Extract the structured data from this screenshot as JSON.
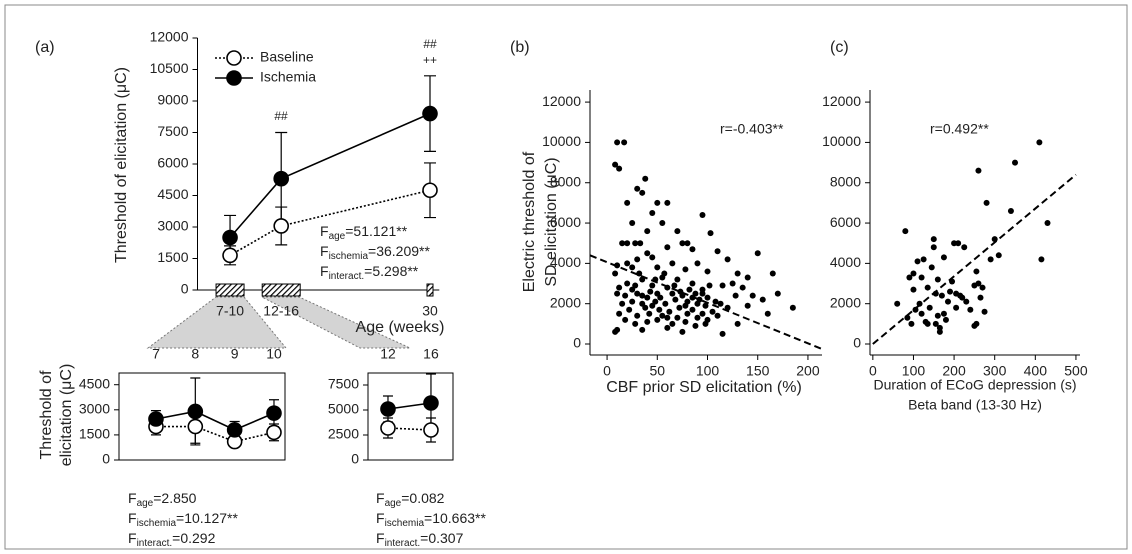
{
  "chart_data": [
    {
      "type": "line",
      "panel": "(a)",
      "ylabel": "Threshold of elicitation (μC)",
      "xlabel": "Age (weeks)",
      "x": [
        8.5,
        14,
        30
      ],
      "xlim": [
        5,
        31
      ],
      "xticks": [
        {
          "value": 8.5,
          "label": "7-10"
        },
        {
          "value": 14,
          "label": "12-16"
        },
        {
          "value": 30,
          "label": "30"
        }
      ],
      "ylim": [
        0,
        12000
      ],
      "yticks": [
        0,
        1500,
        3000,
        4500,
        6000,
        7500,
        9000,
        10500,
        12000
      ],
      "series": [
        {
          "name": "Baseline",
          "color": "#ffffff",
          "dash": "dotted",
          "values": [
            1650,
            3050,
            4750
          ],
          "errors": [
            450,
            900,
            1300
          ]
        },
        {
          "name": "Ischemia",
          "color": "#000000",
          "dash": "solid",
          "values": [
            2500,
            5300,
            8400
          ],
          "errors": [
            1050,
            2200,
            1800
          ]
        }
      ],
      "annotations": [
        "##",
        "##",
        "++"
      ],
      "stats_symbol": "F",
      "stats": [
        {
          "sub": "age",
          "text": "=51.121**"
        },
        {
          "sub": "ischemia",
          "text": "=36.209**"
        },
        {
          "sub": "interact.",
          "text": "=5.298**"
        }
      ]
    },
    {
      "type": "line",
      "ylabel_lines": [
        "Threshold of",
        "elicitation (μC)"
      ],
      "x": [
        7,
        8,
        9,
        10
      ],
      "xlim": [
        6.06,
        10.28
      ],
      "xticks": [
        7,
        8,
        9,
        10
      ],
      "ylim": [
        0,
        5200
      ],
      "yticks": [
        0,
        1500,
        3000,
        4500
      ],
      "series": [
        {
          "name": "Baseline",
          "color": "#ffffff",
          "dash": "dotted",
          "values": [
            2000,
            2000,
            1100,
            1650
          ],
          "errors": [
            500,
            1000,
            300,
            500
          ]
        },
        {
          "name": "Ischemia",
          "color": "#000000",
          "dash": "solid",
          "values": [
            2450,
            2900,
            1800,
            2800
          ],
          "errors": [
            500,
            2000,
            500,
            800
          ]
        }
      ],
      "stats_symbol": "F",
      "stats": [
        {
          "sub": "age",
          "text": "=2.850"
        },
        {
          "sub": "ischemia",
          "text": "=10.127**"
        },
        {
          "sub": "interact.",
          "text": "=0.292"
        }
      ]
    },
    {
      "type": "line",
      "x": [
        12,
        16
      ],
      "xlim": [
        10.14,
        18.05
      ],
      "xticks": [
        12,
        16
      ],
      "ylim": [
        0,
        8700
      ],
      "yticks": [
        0,
        2500,
        5000,
        7500
      ],
      "series": [
        {
          "name": "Baseline",
          "color": "#ffffff",
          "dash": "dotted",
          "values": [
            3200,
            3000
          ],
          "errors": [
            1000,
            1200
          ]
        },
        {
          "name": "Ischemia",
          "color": "#000000",
          "dash": "solid",
          "values": [
            5100,
            5700
          ],
          "errors": [
            1300,
            2900
          ]
        }
      ],
      "stats_symbol": "F",
      "stats": [
        {
          "sub": "age",
          "text": "=0.082"
        },
        {
          "sub": "ischemia",
          "text": "=10.663**"
        },
        {
          "sub": "interact.",
          "text": "=0.307"
        }
      ]
    },
    {
      "type": "scatter",
      "panel": "(b)",
      "ylabel_lines": [
        "Electric threshold of",
        "SD elicitation (μC)"
      ],
      "xlabel": "CBF prior SD elicitation (%)",
      "annotation": "r=-0.403**",
      "xlim": [
        -17,
        214
      ],
      "xticks": [
        0,
        50,
        100,
        150,
        200
      ],
      "ylim": [
        -545,
        12600
      ],
      "yticks": [
        0,
        2000,
        4000,
        6000,
        8000,
        10000,
        12000
      ],
      "color": "#000000",
      "x": [
        10,
        17,
        8,
        12,
        30,
        38,
        35,
        50,
        20,
        60,
        45,
        95,
        25,
        40,
        15,
        20,
        28,
        33,
        55,
        70,
        75,
        103,
        80,
        60,
        40,
        85,
        110,
        150,
        120,
        45,
        30,
        65,
        90,
        10,
        25,
        50,
        78,
        100,
        130,
        140,
        165,
        55,
        20,
        35,
        70,
        85,
        12,
        28,
        45,
        60,
        95,
        115,
        128,
        135,
        145,
        170,
        10,
        18,
        30,
        40,
        50,
        65,
        75,
        88,
        100,
        108,
        155,
        185,
        15,
        25,
        35,
        48,
        58,
        68,
        80,
        90,
        98,
        120,
        22,
        38,
        52,
        62,
        72,
        85,
        95,
        105,
        12,
        30,
        42,
        55,
        70,
        80,
        90,
        100,
        110,
        18,
        28,
        40,
        50,
        65,
        78,
        88,
        98,
        10,
        35,
        60,
        75,
        115,
        45,
        82,
        57,
        43,
        67,
        92,
        102,
        125,
        8,
        32,
        48,
        73,
        85,
        95,
        60,
        25,
        35,
        78,
        53,
        113,
        20,
        8,
        140,
        160,
        130
      ],
      "values": [
        10000,
        10000,
        8900,
        8700,
        7700,
        8200,
        7500,
        7000,
        7000,
        7000,
        6500,
        6400,
        6000,
        5600,
        5000,
        5000,
        5000,
        5000,
        6000,
        5600,
        5000,
        5500,
        5000,
        4800,
        4500,
        4700,
        4600,
        4500,
        4200,
        4300,
        4200,
        4000,
        4000,
        3900,
        3800,
        3800,
        3700,
        3600,
        3500,
        3300,
        3500,
        3300,
        3000,
        3200,
        3200,
        3000,
        2800,
        2900,
        2900,
        2800,
        2700,
        2900,
        2400,
        2800,
        2400,
        2500,
        2500,
        2400,
        2500,
        2300,
        2500,
        2500,
        2400,
        2500,
        2300,
        2100,
        2200,
        1800,
        2000,
        2100,
        2000,
        2100,
        2000,
        2200,
        2100,
        2000,
        1900,
        1800,
        1700,
        1800,
        1700,
        1600,
        1800,
        1700,
        1500,
        1600,
        1500,
        1400,
        1500,
        1400,
        1300,
        1500,
        1300,
        1200,
        1400,
        1200,
        1000,
        1100,
        1200,
        1000,
        1100,
        900,
        1000,
        700,
        700,
        800,
        600,
        500,
        1900,
        2700,
        3500,
        2600,
        2900,
        2200,
        2900,
        3000,
        3500,
        3500,
        3200,
        2600,
        2300,
        2500,
        1300,
        2700,
        2400,
        1900,
        2300,
        2000,
        4000,
        600,
        1900,
        1500,
        1000
      ],
      "trend": {
        "x": [
          -17,
          214
        ],
        "values": [
          4400,
          -250
        ]
      }
    },
    {
      "type": "scatter",
      "panel": "(c)",
      "xlabel_lines": [
        "Duration of ECoG depression (s)",
        "Beta band (13-30 Hz)"
      ],
      "annotation": "r=0.492**",
      "xlim": [
        -7,
        510
      ],
      "xticks": [
        0,
        100,
        200,
        300,
        400,
        500
      ],
      "ylim": [
        -545,
        12600
      ],
      "yticks": [
        0,
        2000,
        4000,
        6000,
        8000,
        10000,
        12000
      ],
      "color": "#000000",
      "x": [
        60,
        80,
        85,
        90,
        95,
        100,
        105,
        110,
        115,
        120,
        125,
        130,
        135,
        140,
        145,
        150,
        150,
        155,
        155,
        160,
        160,
        165,
        165,
        170,
        175,
        180,
        185,
        190,
        195,
        200,
        205,
        210,
        215,
        220,
        225,
        230,
        240,
        250,
        250,
        255,
        260,
        260,
        265,
        270,
        275,
        280,
        290,
        300,
        310,
        340,
        350,
        410,
        415,
        430,
        255,
        205,
        175,
        135,
        100,
        120
      ],
      "values": [
        2000,
        5600,
        1300,
        3300,
        1000,
        3500,
        1700,
        4100,
        2000,
        1500,
        4200,
        1100,
        2800,
        1800,
        3800,
        4800,
        5200,
        2500,
        1000,
        3200,
        1400,
        600,
        800,
        2400,
        4300,
        1200,
        2100,
        2600,
        3100,
        5000,
        2500,
        5000,
        2400,
        2300,
        4800,
        2100,
        1700,
        900,
        2900,
        3600,
        8600,
        3000,
        2300,
        2800,
        1600,
        7000,
        4200,
        5200,
        4400,
        6600,
        9000,
        10000,
        4200,
        6000,
        1000,
        1800,
        1500,
        1000,
        2700,
        3300
      ],
      "trend": {
        "x": [
          0,
          500
        ],
        "values": [
          0,
          8400
        ]
      }
    }
  ]
}
